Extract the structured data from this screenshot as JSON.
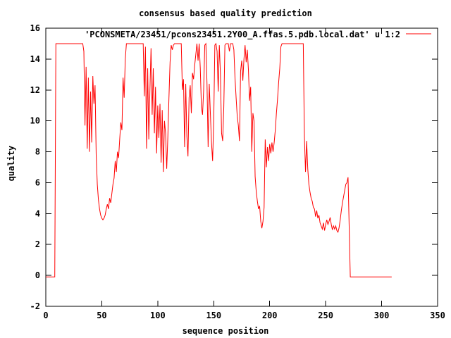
{
  "title": "consensus based quality prediction",
  "legend": {
    "label": "'PCONSMETA/23451/pcons23451.2Y00_A.ffas.5.pdb.local.dat' u 1:2"
  },
  "axes": {
    "x": {
      "label": "sequence position",
      "min": 0,
      "max": 350,
      "ticks": [
        0,
        50,
        100,
        150,
        200,
        250,
        300,
        350
      ]
    },
    "y": {
      "label": "quality",
      "min": -2,
      "max": 16,
      "ticks": [
        -2,
        0,
        2,
        4,
        6,
        8,
        10,
        12,
        14,
        16
      ]
    }
  },
  "colors": {
    "line": "#ff0000",
    "axis": "#000000",
    "background": "#ffffff",
    "text": "#000000"
  },
  "chart_data": {
    "type": "line",
    "title": "consensus based quality prediction",
    "xlabel": "sequence position",
    "ylabel": "quality",
    "xlim": [
      0,
      350
    ],
    "ylim": [
      -2,
      16
    ],
    "grid": false,
    "legend_position": "top-right-inside",
    "series": [
      {
        "name": "'PCONSMETA/23451/pcons23451.2Y00_A.ffas.5.pdb.local.dat' u 1:2",
        "color": "#ff0000",
        "points": [
          [
            0,
            -0.1
          ],
          [
            8,
            -0.1
          ],
          [
            9,
            15
          ],
          [
            33,
            15
          ],
          [
            34,
            14.5
          ],
          [
            35,
            9.7
          ],
          [
            36,
            13.5
          ],
          [
            37,
            8.2
          ],
          [
            38,
            12.8
          ],
          [
            39,
            8.0
          ],
          [
            40,
            11.9
          ],
          [
            41,
            8.6
          ],
          [
            42,
            12.9
          ],
          [
            43,
            11.1
          ],
          [
            44,
            12.3
          ],
          [
            45,
            7.8
          ],
          [
            46,
            5.9
          ],
          [
            47,
            4.9
          ],
          [
            48,
            4.3
          ],
          [
            49,
            3.9
          ],
          [
            50,
            3.7
          ],
          [
            51,
            3.6
          ],
          [
            52,
            3.7
          ],
          [
            53,
            3.9
          ],
          [
            54,
            4.3
          ],
          [
            55,
            4.6
          ],
          [
            56,
            4.3
          ],
          [
            57,
            5.0
          ],
          [
            58,
            4.7
          ],
          [
            59,
            5.3
          ],
          [
            60,
            5.9
          ],
          [
            61,
            6.3
          ],
          [
            62,
            7.4
          ],
          [
            63,
            6.7
          ],
          [
            64,
            8.0
          ],
          [
            65,
            7.6
          ],
          [
            66,
            8.8
          ],
          [
            67,
            9.9
          ],
          [
            68,
            9.4
          ],
          [
            69,
            12.8
          ],
          [
            70,
            11.5
          ],
          [
            71,
            14.0
          ],
          [
            72,
            15
          ],
          [
            87,
            15
          ],
          [
            88,
            11.6
          ],
          [
            89,
            14.8
          ],
          [
            90,
            8.2
          ],
          [
            91,
            13.4
          ],
          [
            92,
            8.8
          ],
          [
            93,
            12.0
          ],
          [
            94,
            14.7
          ],
          [
            95,
            10.4
          ],
          [
            96,
            13.4
          ],
          [
            97,
            9.2
          ],
          [
            98,
            12.2
          ],
          [
            99,
            7.9
          ],
          [
            100,
            11.0
          ],
          [
            101,
            8.9
          ],
          [
            102,
            11.1
          ],
          [
            103,
            7.3
          ],
          [
            104,
            10.7
          ],
          [
            105,
            6.7
          ],
          [
            106,
            10.0
          ],
          [
            107,
            9.2
          ],
          [
            108,
            6.9
          ],
          [
            109,
            8.9
          ],
          [
            110,
            11.5
          ],
          [
            111,
            13.8
          ],
          [
            112,
            14.9
          ],
          [
            113,
            14.6
          ],
          [
            114,
            14.9
          ],
          [
            115,
            15
          ],
          [
            121,
            15
          ],
          [
            122,
            12.0
          ],
          [
            123,
            12.7
          ],
          [
            124,
            8.3
          ],
          [
            125,
            12.4
          ],
          [
            126,
            9.0
          ],
          [
            127,
            7.7
          ],
          [
            128,
            11.5
          ],
          [
            129,
            12.3
          ],
          [
            130,
            10.5
          ],
          [
            131,
            13.1
          ],
          [
            132,
            12.7
          ],
          [
            133,
            13.6
          ],
          [
            134,
            14.3
          ],
          [
            135,
            15
          ],
          [
            136,
            13.9
          ],
          [
            137,
            15
          ],
          [
            138,
            13.4
          ],
          [
            139,
            10.9
          ],
          [
            140,
            10.4
          ],
          [
            141,
            12.0
          ],
          [
            142,
            14.9
          ],
          [
            143,
            15
          ],
          [
            144,
            12.4
          ],
          [
            145,
            8.3
          ],
          [
            146,
            12.4
          ],
          [
            147,
            10.5
          ],
          [
            148,
            8.6
          ],
          [
            149,
            7.4
          ],
          [
            150,
            10.0
          ],
          [
            151,
            14.9
          ],
          [
            152,
            15
          ],
          [
            153,
            14.5
          ],
          [
            154,
            11.9
          ],
          [
            155,
            14.9
          ],
          [
            156,
            13.0
          ],
          [
            157,
            9.2
          ],
          [
            158,
            8.7
          ],
          [
            159,
            10.9
          ],
          [
            160,
            14.9
          ],
          [
            161,
            15
          ],
          [
            163,
            15
          ],
          [
            164,
            14.5
          ],
          [
            165,
            15
          ],
          [
            167,
            15
          ],
          [
            168,
            14.6
          ],
          [
            169,
            12.8
          ],
          [
            170,
            11.5
          ],
          [
            171,
            10.3
          ],
          [
            172,
            9.7
          ],
          [
            173,
            8.7
          ],
          [
            174,
            13.2
          ],
          [
            175,
            13.9
          ],
          [
            176,
            12.6
          ],
          [
            177,
            14.0
          ],
          [
            178,
            14.9
          ],
          [
            179,
            13.8
          ],
          [
            180,
            14.6
          ],
          [
            181,
            13.3
          ],
          [
            182,
            11.3
          ],
          [
            183,
            12.2
          ],
          [
            184,
            8.0
          ],
          [
            185,
            10.5
          ],
          [
            186,
            10.0
          ],
          [
            187,
            6.4
          ],
          [
            188,
            5.4
          ],
          [
            189,
            4.8
          ],
          [
            190,
            4.3
          ],
          [
            191,
            4.5
          ],
          [
            192,
            3.5
          ],
          [
            193,
            3.05
          ],
          [
            194,
            3.5
          ],
          [
            195,
            4.4
          ],
          [
            196,
            8.8
          ],
          [
            197,
            7.0
          ],
          [
            198,
            8.3
          ],
          [
            199,
            7.4
          ],
          [
            200,
            8.5
          ],
          [
            201,
            7.9
          ],
          [
            202,
            8.6
          ],
          [
            203,
            8.0
          ],
          [
            204,
            8.6
          ],
          [
            205,
            9.4
          ],
          [
            206,
            10.5
          ],
          [
            207,
            11.4
          ],
          [
            208,
            12.5
          ],
          [
            209,
            13.4
          ],
          [
            210,
            14.8
          ],
          [
            211,
            15
          ],
          [
            230,
            15
          ],
          [
            231,
            9.0
          ],
          [
            232,
            6.7
          ],
          [
            233,
            8.7
          ],
          [
            234,
            6.9
          ],
          [
            235,
            5.9
          ],
          [
            236,
            5.4
          ],
          [
            237,
            5.0
          ],
          [
            238,
            4.8
          ],
          [
            239,
            4.4
          ],
          [
            240,
            4.3
          ],
          [
            241,
            3.8
          ],
          [
            242,
            4.2
          ],
          [
            243,
            3.7
          ],
          [
            244,
            3.9
          ],
          [
            245,
            3.4
          ],
          [
            246,
            3.2
          ],
          [
            247,
            3.0
          ],
          [
            248,
            3.4
          ],
          [
            249,
            2.9
          ],
          [
            250,
            3.3
          ],
          [
            251,
            3.6
          ],
          [
            252,
            3.3
          ],
          [
            253,
            3.5
          ],
          [
            254,
            3.75
          ],
          [
            255,
            3.3
          ],
          [
            256,
            2.95
          ],
          [
            257,
            3.2
          ],
          [
            258,
            3.0
          ],
          [
            259,
            3.2
          ],
          [
            260,
            2.9
          ],
          [
            261,
            2.8
          ],
          [
            262,
            3.1
          ],
          [
            263,
            3.6
          ],
          [
            264,
            4.2
          ],
          [
            265,
            4.7
          ],
          [
            266,
            5.1
          ],
          [
            267,
            5.5
          ],
          [
            268,
            5.9
          ],
          [
            269,
            6.0
          ],
          [
            270,
            6.35
          ],
          [
            271,
            3.15
          ],
          [
            272,
            -0.1
          ],
          [
            309,
            -0.1
          ]
        ]
      }
    ]
  }
}
